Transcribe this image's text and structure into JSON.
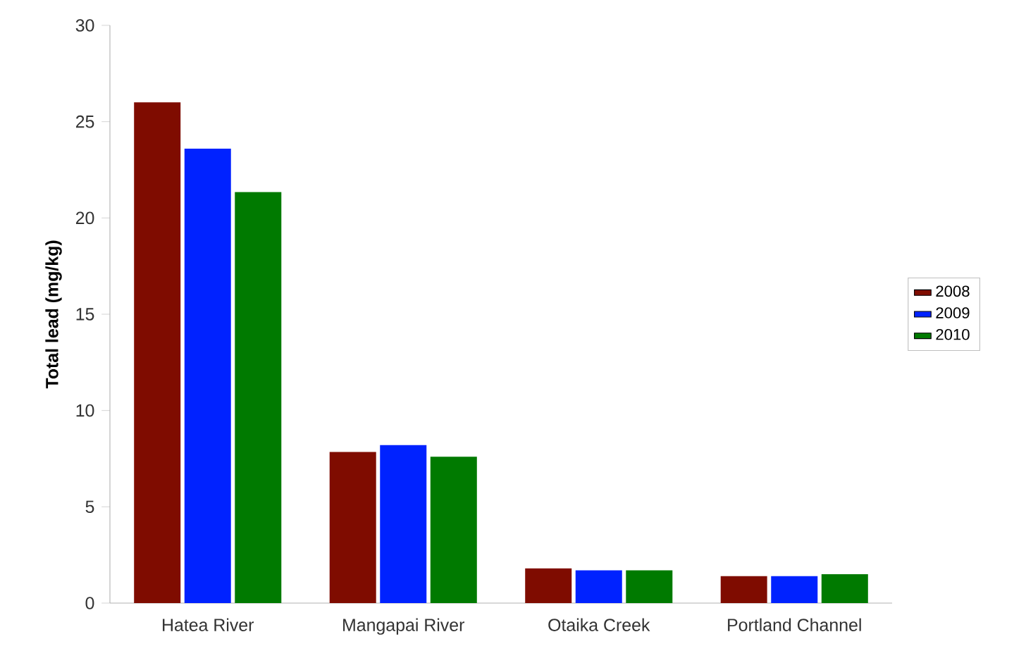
{
  "chart_data": {
    "type": "bar",
    "ylabel": "Total lead (mg/kg)",
    "categories": [
      "Hatea River",
      "Mangapai River",
      "Otaika Creek",
      "Portland Channel"
    ],
    "series": [
      {
        "name": "2008",
        "color": "#7f0c00",
        "values": [
          26.0,
          7.85,
          1.8,
          1.4
        ]
      },
      {
        "name": "2009",
        "color": "#0022ff",
        "values": [
          23.6,
          8.2,
          1.7,
          1.4
        ]
      },
      {
        "name": "2010",
        "color": "#007a00",
        "values": [
          21.35,
          7.6,
          1.7,
          1.5
        ]
      }
    ],
    "ylim": [
      0,
      30
    ],
    "yticks": [
      0,
      5,
      10,
      15,
      20,
      25,
      30
    ],
    "grid": false,
    "legend": "right"
  }
}
